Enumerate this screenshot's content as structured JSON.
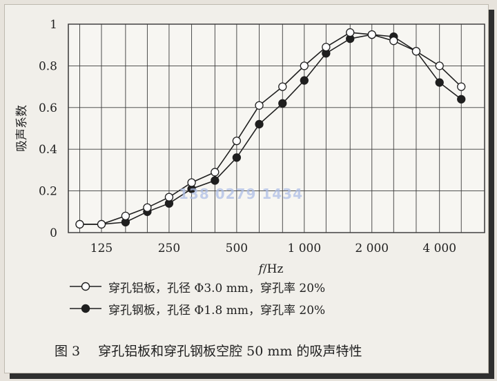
{
  "chart_data": {
    "type": "line",
    "ylabel": "吸声系数",
    "xlabel_italic": "f",
    "xlabel_unit": "/Hz",
    "x_scale": "log",
    "ylim": [
      0,
      1
    ],
    "y_ticks": [
      "0",
      "0.2",
      "0.4",
      "0.6",
      "0.8",
      "1"
    ],
    "x_tick_labels": [
      {
        "x": 125,
        "label": "125"
      },
      {
        "x": 250,
        "label": "250"
      },
      {
        "x": 500,
        "label": "500"
      },
      {
        "x": 1000,
        "label": "1 000"
      },
      {
        "x": 2000,
        "label": "2 000"
      },
      {
        "x": 4000,
        "label": "4 000"
      }
    ],
    "grid": true,
    "series": [
      {
        "name": "穿孔铝板，孔径 Φ3.0 mm，穿孔率 20%",
        "marker": "open-circle",
        "color": "#1f1f1f",
        "x": [
          100,
          125,
          160,
          200,
          250,
          315,
          400,
          500,
          630,
          800,
          1000,
          1250,
          1600,
          2000,
          2500,
          3150,
          4000,
          5000
        ],
        "values": [
          0.04,
          0.04,
          0.08,
          0.12,
          0.17,
          0.24,
          0.29,
          0.44,
          0.61,
          0.7,
          0.8,
          0.89,
          0.96,
          0.95,
          0.92,
          0.87,
          0.8,
          0.7
        ]
      },
      {
        "name": "穿孔钢板，孔径 Φ1.8 mm，穿孔率 20%",
        "marker": "filled-circle",
        "color": "#1f1f1f",
        "x": [
          100,
          125,
          160,
          200,
          250,
          315,
          400,
          500,
          630,
          800,
          1000,
          1250,
          1600,
          2000,
          2500,
          3150,
          4000,
          5000
        ],
        "values": [
          0.04,
          0.04,
          0.05,
          0.1,
          0.14,
          0.21,
          0.25,
          0.36,
          0.52,
          0.62,
          0.73,
          0.86,
          0.93,
          0.95,
          0.94,
          0.87,
          0.72,
          0.64
        ]
      }
    ]
  },
  "legend": [
    {
      "label": "穿孔铝板，孔径 Φ3.0 mm，穿孔率 20%",
      "marker": "open-circle"
    },
    {
      "label": "穿孔钢板，孔径 Φ1.8 mm，穿孔率 20%",
      "marker": "filled-circle"
    }
  ],
  "caption": {
    "number": "图 3",
    "title": "穿孔铝板和穿孔钢板空腔 50 mm 的吸声特性"
  },
  "watermark": "138 0279 1434"
}
